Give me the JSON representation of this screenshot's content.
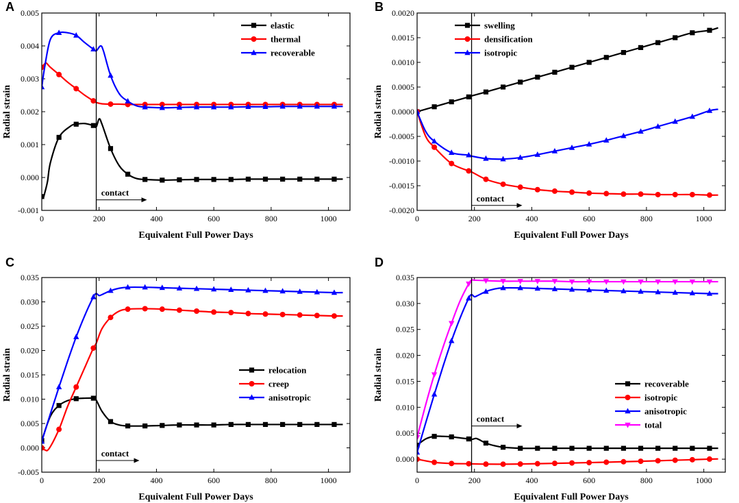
{
  "chart_data": [
    {
      "type": "line",
      "panel": "A",
      "xlabel": "Equivalent Full Power Days",
      "ylabel": "Radial strain",
      "xlim": [
        0,
        1075
      ],
      "ylim": [
        -0.001,
        0.005
      ],
      "xticks": [
        0,
        200,
        400,
        600,
        800,
        1000
      ],
      "xtick_labels": [
        "0",
        "200",
        "400",
        "600",
        "800",
        "1000"
      ],
      "yticks": [
        -0.001,
        0,
        0.001,
        0.002,
        0.003,
        0.004,
        0.005
      ],
      "ytick_labels": [
        "-0.001",
        "0.000",
        "0.001",
        "0.002",
        "0.003",
        "0.004",
        "0.005"
      ],
      "legend_position": "top-right",
      "contact_x": 190,
      "annotation": {
        "text": "contact",
        "x": 200,
        "y": -0.00068
      },
      "series": [
        {
          "name": "elastic",
          "color": "#000000",
          "marker": "square",
          "x": [
            0,
            5,
            10,
            20,
            30,
            60,
            100,
            120,
            150,
            180,
            190,
            200,
            210,
            240,
            270,
            300,
            330,
            360,
            420,
            480,
            540,
            600,
            660,
            720,
            780,
            840,
            900,
            960,
            1020,
            1050
          ],
          "y": [
            -0.00058,
            -0.00062,
            -0.00048,
            -0.00012,
            0.00045,
            0.00122,
            0.00156,
            0.00162,
            0.00164,
            0.00158,
            0.00154,
            0.00178,
            0.00162,
            0.00088,
            0.00036,
            0.0001,
            -3e-05,
            -6e-05,
            -8e-05,
            -7e-05,
            -6e-05,
            -6e-05,
            -6e-05,
            -5e-05,
            -5e-05,
            -5e-05,
            -5e-05,
            -5e-05,
            -5e-05,
            -5e-05
          ]
        },
        {
          "name": "thermal",
          "color": "#ff0000",
          "marker": "circle",
          "x": [
            0,
            5,
            15,
            30,
            60,
            90,
            120,
            150,
            180,
            190,
            210,
            240,
            270,
            300,
            360,
            420,
            480,
            540,
            600,
            660,
            720,
            780,
            840,
            900,
            960,
            1020,
            1050
          ],
          "y": [
            0.00335,
            0.0034,
            0.00348,
            0.00335,
            0.00313,
            0.0029,
            0.0027,
            0.0025,
            0.00233,
            0.00228,
            0.00224,
            0.00223,
            0.00223,
            0.00222,
            0.00222,
            0.00222,
            0.00222,
            0.00222,
            0.00222,
            0.00222,
            0.00222,
            0.00222,
            0.00222,
            0.00222,
            0.00222,
            0.00222,
            0.00222
          ]
        },
        {
          "name": "recoverable",
          "color": "#0000ff",
          "marker": "triangle-up",
          "x": [
            0,
            10,
            30,
            60,
            90,
            120,
            150,
            180,
            190,
            205,
            215,
            240,
            270,
            300,
            330,
            360,
            420,
            480,
            540,
            600,
            660,
            720,
            780,
            840,
            900,
            960,
            1020,
            1050
          ],
          "y": [
            0.00275,
            0.00335,
            0.0042,
            0.0044,
            0.0044,
            0.00432,
            0.0041,
            0.0039,
            0.00385,
            0.004,
            0.00385,
            0.0031,
            0.00255,
            0.00232,
            0.00218,
            0.00214,
            0.00212,
            0.00213,
            0.00214,
            0.00214,
            0.00214,
            0.00215,
            0.00215,
            0.00216,
            0.00216,
            0.00216,
            0.00216,
            0.00216
          ]
        }
      ]
    },
    {
      "type": "line",
      "panel": "B",
      "xlabel": "Equivalent Full Power Days",
      "ylabel": "Radial strain",
      "xlim": [
        0,
        1075
      ],
      "ylim": [
        -0.002,
        0.002
      ],
      "xticks": [
        0,
        200,
        400,
        600,
        800,
        1000
      ],
      "xtick_labels": [
        "0",
        "200",
        "400",
        "600",
        "800",
        "1000"
      ],
      "yticks": [
        -0.002,
        -0.0015,
        -0.001,
        -0.0005,
        0,
        0.0005,
        0.001,
        0.0015,
        0.002
      ],
      "ytick_labels": [
        "-0.0020",
        "-0.0015",
        "-0.0010",
        "-0.0005",
        "0.0000",
        "0.0005",
        "0.0010",
        "0.0015",
        "0.0020"
      ],
      "legend_position": "top-left",
      "contact_x": 190,
      "annotation": {
        "text": "contact",
        "x": 200,
        "y": -0.0019
      },
      "series": [
        {
          "name": "swelling",
          "color": "#000000",
          "marker": "square",
          "x": [
            0,
            60,
            120,
            180,
            190,
            240,
            300,
            360,
            420,
            480,
            540,
            600,
            660,
            720,
            780,
            840,
            900,
            960,
            1020,
            1050
          ],
          "y": [
            0,
            0.0001,
            0.0002,
            0.0003,
            0.00032,
            0.0004,
            0.0005,
            0.0006,
            0.0007,
            0.0008,
            0.0009,
            0.001,
            0.0011,
            0.0012,
            0.0013,
            0.0014,
            0.0015,
            0.0016,
            0.00165,
            0.0017
          ]
        },
        {
          "name": "densification",
          "color": "#ff0000",
          "marker": "circle",
          "x": [
            0,
            30,
            60,
            120,
            180,
            190,
            240,
            300,
            360,
            420,
            480,
            540,
            600,
            660,
            720,
            780,
            840,
            900,
            960,
            1020,
            1050
          ],
          "y": [
            0,
            -0.0005,
            -0.00072,
            -0.00105,
            -0.0012,
            -0.00122,
            -0.00137,
            -0.00147,
            -0.00153,
            -0.00158,
            -0.00161,
            -0.00163,
            -0.00165,
            -0.00166,
            -0.00167,
            -0.00167,
            -0.00168,
            -0.00168,
            -0.00168,
            -0.00169,
            -0.00169
          ]
        },
        {
          "name": "isotropic",
          "color": "#0000ff",
          "marker": "triangle-up",
          "x": [
            0,
            30,
            60,
            120,
            180,
            190,
            240,
            300,
            360,
            420,
            480,
            540,
            600,
            660,
            720,
            780,
            840,
            900,
            960,
            1020,
            1050
          ],
          "y": [
            0,
            -0.0004,
            -0.0006,
            -0.00083,
            -0.00088,
            -0.0009,
            -0.00095,
            -0.00096,
            -0.00093,
            -0.00087,
            -0.0008,
            -0.00073,
            -0.00066,
            -0.00058,
            -0.00049,
            -0.0004,
            -0.0003,
            -0.0002,
            -0.0001,
            2e-05,
            5e-05
          ]
        }
      ]
    },
    {
      "type": "line",
      "panel": "C",
      "xlabel": "Equivalent Full Power Days",
      "ylabel": "Radial strain",
      "xlim": [
        0,
        1075
      ],
      "ylim": [
        -0.005,
        0.035
      ],
      "xticks": [
        0,
        200,
        400,
        600,
        800,
        1000
      ],
      "xtick_labels": [
        "0",
        "200",
        "400",
        "600",
        "800",
        "1000"
      ],
      "yticks": [
        -0.005,
        0,
        0.005,
        0.01,
        0.015,
        0.02,
        0.025,
        0.03,
        0.035
      ],
      "ytick_labels": [
        "-0.005",
        "0.000",
        "0.005",
        "0.010",
        "0.015",
        "0.020",
        "0.025",
        "0.030",
        "0.035"
      ],
      "legend_position": "center-right",
      "contact_x": 190,
      "annotation": {
        "text": "contact",
        "x": 200,
        "y": -0.0026
      },
      "series": [
        {
          "name": "relocation",
          "color": "#000000",
          "marker": "square",
          "x": [
            0,
            30,
            60,
            90,
            120,
            150,
            180,
            190,
            210,
            240,
            270,
            300,
            360,
            420,
            480,
            540,
            600,
            660,
            720,
            780,
            840,
            900,
            960,
            1020,
            1050
          ],
          "y": [
            0.0015,
            0.0065,
            0.0087,
            0.0097,
            0.0101,
            0.0102,
            0.0102,
            0.0098,
            0.0075,
            0.0054,
            0.0047,
            0.0045,
            0.0045,
            0.0046,
            0.0047,
            0.0047,
            0.0047,
            0.0048,
            0.0048,
            0.0048,
            0.0048,
            0.0048,
            0.0048,
            0.0048,
            0.0048
          ]
        },
        {
          "name": "creep",
          "color": "#ff0000",
          "marker": "circle",
          "x": [
            0,
            10,
            25,
            60,
            90,
            120,
            150,
            180,
            190,
            210,
            240,
            270,
            300,
            360,
            420,
            480,
            540,
            600,
            660,
            720,
            780,
            840,
            900,
            960,
            1020,
            1050
          ],
          "y": [
            0,
            -0.0004,
            -0.0002,
            0.0038,
            0.0085,
            0.0125,
            0.0165,
            0.0205,
            0.0215,
            0.0245,
            0.0268,
            0.0281,
            0.0285,
            0.0286,
            0.0285,
            0.0283,
            0.0281,
            0.0279,
            0.0278,
            0.0276,
            0.0275,
            0.0274,
            0.0273,
            0.0272,
            0.0271,
            0.0271
          ]
        },
        {
          "name": "anisotropic",
          "color": "#0000ff",
          "marker": "triangle-up",
          "x": [
            0,
            30,
            60,
            90,
            120,
            150,
            180,
            190,
            200,
            210,
            240,
            270,
            300,
            360,
            420,
            480,
            540,
            600,
            660,
            720,
            780,
            840,
            900,
            960,
            1020,
            1050
          ],
          "y": [
            0.0013,
            0.007,
            0.0125,
            0.0178,
            0.0228,
            0.0272,
            0.031,
            0.0317,
            0.0313,
            0.0315,
            0.0323,
            0.0328,
            0.033,
            0.033,
            0.0329,
            0.0328,
            0.0327,
            0.0326,
            0.0325,
            0.0324,
            0.0323,
            0.0322,
            0.0321,
            0.032,
            0.0319,
            0.0319
          ]
        }
      ]
    },
    {
      "type": "line",
      "panel": "D",
      "xlabel": "Equivalent Full Power Days",
      "ylabel": "Radial strain",
      "xlim": [
        0,
        1075
      ],
      "ylim": [
        -0.0025,
        0.035
      ],
      "xticks": [
        0,
        200,
        400,
        600,
        800,
        1000
      ],
      "xtick_labels": [
        "0",
        "200",
        "400",
        "600",
        "800",
        "1000"
      ],
      "yticks": [
        0,
        0.005,
        0.01,
        0.015,
        0.02,
        0.025,
        0.03,
        0.035
      ],
      "ytick_labels": [
        "0.000",
        "0.005",
        "0.010",
        "0.015",
        "0.020",
        "0.025",
        "0.030",
        "0.035"
      ],
      "legend_position": "bottom-right",
      "contact_x": 190,
      "annotation": {
        "text": "contact",
        "x": 200,
        "y": 0.0064
      },
      "series": [
        {
          "name": "recoverable",
          "color": "#000000",
          "marker": "square",
          "x": [
            0,
            30,
            60,
            90,
            120,
            150,
            180,
            190,
            205,
            215,
            240,
            270,
            300,
            360,
            420,
            480,
            540,
            600,
            660,
            720,
            780,
            840,
            900,
            960,
            1020,
            1050
          ],
          "y": [
            0.0027,
            0.0039,
            0.0044,
            0.0044,
            0.0043,
            0.0041,
            0.0039,
            0.0038,
            0.004,
            0.0038,
            0.0031,
            0.0026,
            0.0023,
            0.0021,
            0.0021,
            0.0021,
            0.0021,
            0.0021,
            0.0021,
            0.0021,
            0.0021,
            0.0021,
            0.0021,
            0.0021,
            0.0021,
            0.0021
          ]
        },
        {
          "name": "isotropic",
          "color": "#ff0000",
          "marker": "circle",
          "x": [
            0,
            60,
            120,
            180,
            190,
            240,
            300,
            360,
            420,
            480,
            540,
            600,
            660,
            720,
            780,
            840,
            900,
            960,
            1020,
            1050
          ],
          "y": [
            0,
            -0.0006,
            -0.00083,
            -0.00088,
            -0.0009,
            -0.00095,
            -0.00096,
            -0.00093,
            -0.00087,
            -0.0008,
            -0.00073,
            -0.00066,
            -0.00058,
            -0.00049,
            -0.0004,
            -0.0003,
            -0.0002,
            -0.0001,
            2e-05,
            5e-05
          ]
        },
        {
          "name": "anisotropic",
          "color": "#0000ff",
          "marker": "triangle-up",
          "x": [
            0,
            30,
            60,
            90,
            120,
            150,
            180,
            190,
            200,
            210,
            240,
            270,
            300,
            360,
            420,
            480,
            540,
            600,
            660,
            720,
            780,
            840,
            900,
            960,
            1020,
            1050
          ],
          "y": [
            0.0013,
            0.007,
            0.0125,
            0.0178,
            0.0228,
            0.0272,
            0.031,
            0.0317,
            0.0313,
            0.0315,
            0.0323,
            0.0328,
            0.033,
            0.033,
            0.0329,
            0.0328,
            0.0327,
            0.0326,
            0.0325,
            0.0324,
            0.0323,
            0.0322,
            0.0321,
            0.032,
            0.0319,
            0.0319
          ]
        },
        {
          "name": "total",
          "color": "#ff00ff",
          "marker": "triangle-down",
          "x": [
            0,
            30,
            60,
            90,
            120,
            150,
            180,
            190,
            200,
            240,
            300,
            360,
            420,
            480,
            540,
            600,
            660,
            720,
            780,
            840,
            900,
            960,
            1020,
            1050
          ],
          "y": [
            0.0042,
            0.0105,
            0.0163,
            0.0215,
            0.0262,
            0.0305,
            0.0338,
            0.0345,
            0.0345,
            0.0344,
            0.0343,
            0.0343,
            0.0343,
            0.0343,
            0.0342,
            0.0342,
            0.0342,
            0.0342,
            0.0342,
            0.0342,
            0.0342,
            0.0342,
            0.0342,
            0.0342
          ]
        }
      ]
    }
  ]
}
